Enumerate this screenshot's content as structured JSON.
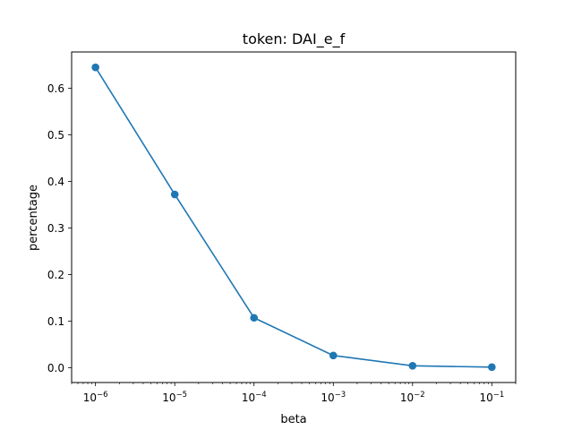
{
  "chart_data": {
    "type": "line",
    "title": "token: DAI_e_f",
    "xlabel": "beta",
    "ylabel": "percentage",
    "xscale": "log",
    "xlim": [
      5e-07,
      0.2
    ],
    "ylim": [
      -0.032,
      0.678
    ],
    "xticks": [
      {
        "value": 1e-06,
        "base": "10",
        "exp": "−6"
      },
      {
        "value": 1e-05,
        "base": "10",
        "exp": "−5"
      },
      {
        "value": 0.0001,
        "base": "10",
        "exp": "−4"
      },
      {
        "value": 0.001,
        "base": "10",
        "exp": "−3"
      },
      {
        "value": 0.01,
        "base": "10",
        "exp": "−2"
      },
      {
        "value": 0.1,
        "base": "10",
        "exp": "−1"
      }
    ],
    "yticks": [
      "0.0",
      "0.1",
      "0.2",
      "0.3",
      "0.4",
      "0.5",
      "0.6"
    ],
    "grid": false,
    "series": [
      {
        "color": "#1f77b4",
        "marker": "circle",
        "x": [
          1e-06,
          1e-05,
          0.0001,
          0.001,
          0.01,
          0.1
        ],
        "y": [
          0.645,
          0.372,
          0.107,
          0.026,
          0.004,
          0.001
        ]
      }
    ]
  }
}
